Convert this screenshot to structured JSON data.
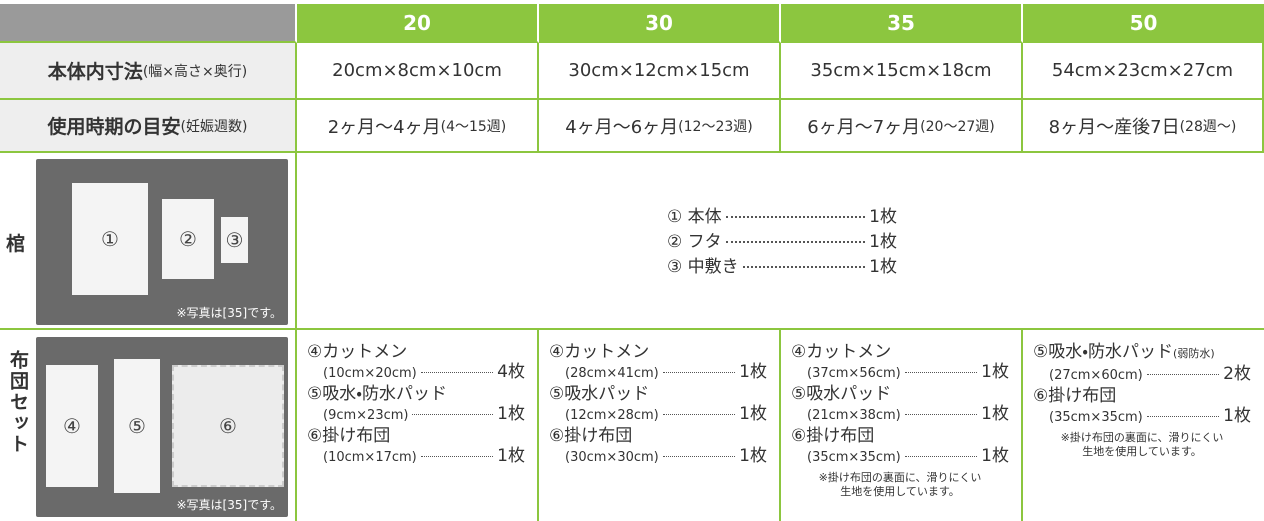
{
  "header": {
    "columns": [
      "20",
      "30",
      "35",
      "50"
    ]
  },
  "rows": [
    {
      "label": "本体内寸法",
      "sublabel": "(幅×高さ×奥行)",
      "values": [
        {
          "main": "20cm×8cm×10cm"
        },
        {
          "main": "30cm×12cm×15cm"
        },
        {
          "main": "35cm×15cm×18cm"
        },
        {
          "main": "54cm×23cm×27cm"
        }
      ]
    },
    {
      "label": "使用時期の目安",
      "sublabel": "(妊娠週数)",
      "values": [
        {
          "main": "2ヶ月〜4ヶ月",
          "sub": "(4〜15週)"
        },
        {
          "main": "4ヶ月〜6ヶ月",
          "sub": "(12〜23週)"
        },
        {
          "main": "6ヶ月〜7ヶ月",
          "sub": "(20〜27週)"
        },
        {
          "main": "8ヶ月〜産後7日",
          "sub": "(28週〜)"
        }
      ]
    }
  ],
  "coffin": {
    "label": "棺",
    "photo_numbers": [
      "①",
      "②",
      "③"
    ],
    "photo_caption": "※写真は[35]です。",
    "items": [
      {
        "name": "① 本体",
        "qty": "1枚"
      },
      {
        "name": "② フタ",
        "qty": "1枚"
      },
      {
        "name": "③ 中敷き",
        "qty": "1枚"
      }
    ]
  },
  "futon": {
    "label": "布団セット",
    "photo_numbers": [
      "④",
      "⑤",
      "⑥"
    ],
    "photo_caption": "※写真は[35]です。",
    "columns": [
      {
        "items": [
          {
            "name": "④カットメン",
            "size": "(10cm×20cm)",
            "qty": "4枚"
          },
          {
            "name": "⑤吸水・防水パッド",
            "size": "(9cm×23cm)",
            "qty": "1枚"
          },
          {
            "name": "⑥掛け布団",
            "size": "(10cm×17cm)",
            "qty": "1枚"
          }
        ]
      },
      {
        "items": [
          {
            "name": "④カットメン",
            "size": "(28cm×41cm)",
            "qty": "1枚"
          },
          {
            "name": "⑤吸水パッド",
            "size": "(12cm×28cm)",
            "qty": "1枚"
          },
          {
            "name": "⑥掛け布団",
            "size": "(30cm×30cm)",
            "qty": "1枚"
          }
        ]
      },
      {
        "items": [
          {
            "name": "④カットメン",
            "size": "(37cm×56cm)",
            "qty": "1枚"
          },
          {
            "name": "⑤吸水パッド",
            "size": "(21cm×38cm)",
            "qty": "1枚"
          },
          {
            "name": "⑥掛け布団",
            "size": "(35cm×35cm)",
            "qty": "1枚"
          }
        ],
        "notes": [
          "※掛け布団の裏面に、滑りにくい",
          "生地を使用しています。"
        ]
      },
      {
        "items": [
          {
            "name": "⑤吸水・防水パッド",
            "name_suffix": "(弱防水)",
            "size": "(27cm×60cm)",
            "qty": "2枚"
          },
          {
            "name": "⑥掛け布団",
            "size": "(35cm×35cm)",
            "qty": "1枚"
          }
        ],
        "notes": [
          "※掛け布団の裏面に、滑りにくい",
          "生地を使用しています。"
        ]
      }
    ]
  }
}
